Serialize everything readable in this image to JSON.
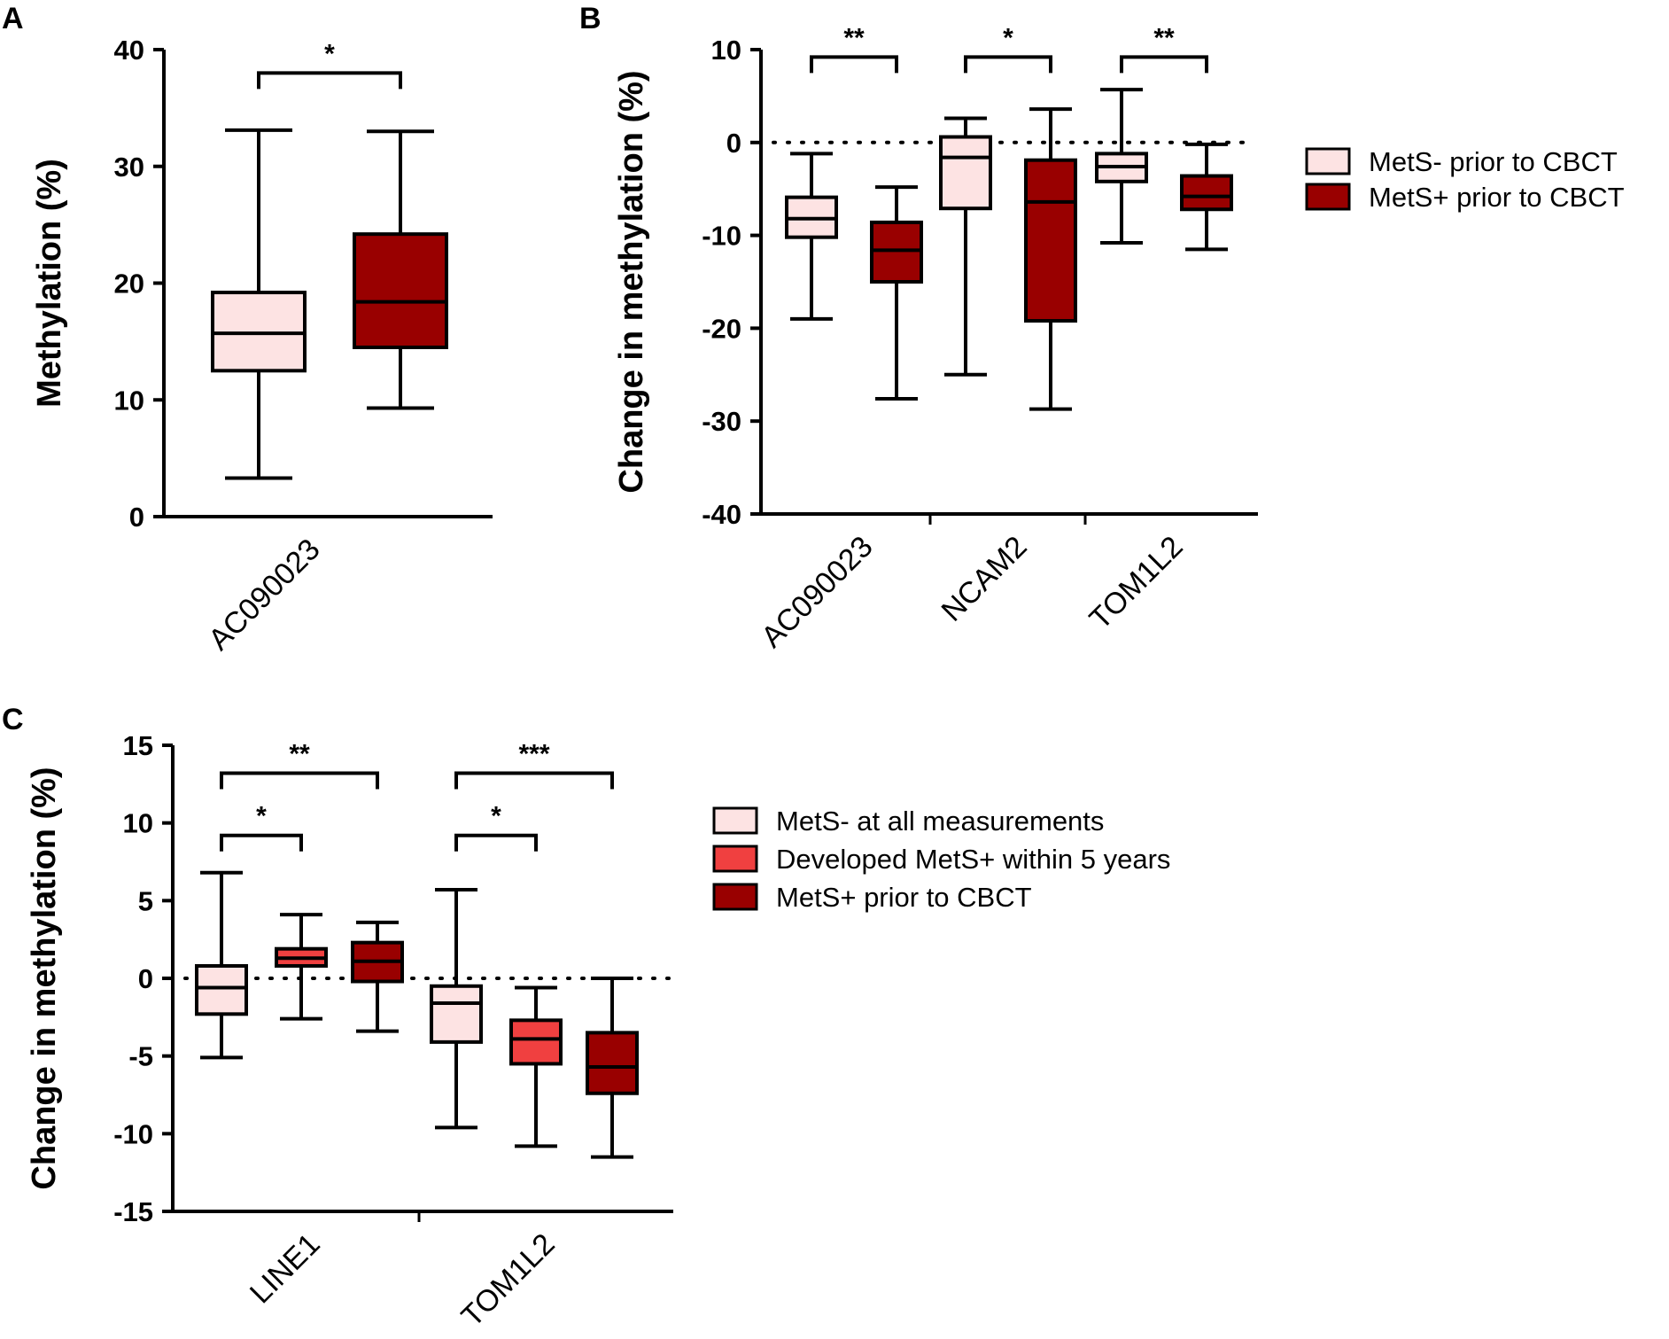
{
  "chart_data": [
    {
      "panel": "A",
      "type": "box",
      "ylabel": "Methylation (%)",
      "ylim": [
        0,
        40
      ],
      "yticks": [
        0,
        10,
        20,
        30,
        40
      ],
      "categories": [
        "AC090023"
      ],
      "series": [
        {
          "name": "MetS- prior to CBCT",
          "color": "#fde3e3",
          "boxes": [
            {
              "min": 3.3,
              "q1": 12.5,
              "median": 15.7,
              "q3": 19.2,
              "max": 33.1
            }
          ]
        },
        {
          "name": "MetS+ prior to CBCT",
          "color": "#990000",
          "boxes": [
            {
              "min": 9.3,
              "q1": 14.5,
              "median": 18.4,
              "q3": 24.2,
              "max": 33.0
            }
          ]
        }
      ],
      "comparisons": [
        {
          "category": 0,
          "from": 0,
          "to": 1,
          "label": "*",
          "y": 38.0
        }
      ]
    },
    {
      "panel": "B",
      "type": "box",
      "ylabel": "Change in methylation (%)",
      "ylim": [
        -40,
        10
      ],
      "yticks": [
        -40,
        -30,
        -20,
        -10,
        0,
        10
      ],
      "reference_line": 0,
      "categories": [
        "AC090023",
        "NCAM2",
        "TOM1L2"
      ],
      "series": [
        {
          "name": "MetS- prior to CBCT",
          "color": "#fde3e3",
          "boxes": [
            {
              "min": -19.0,
              "q1": -10.2,
              "median": -8.2,
              "q3": -5.9,
              "max": -1.2
            },
            {
              "min": -25.0,
              "q1": -7.1,
              "median": -1.6,
              "q3": 0.6,
              "max": 2.6
            },
            {
              "min": -10.8,
              "q1": -4.2,
              "median": -2.6,
              "q3": -1.2,
              "max": 5.7
            }
          ]
        },
        {
          "name": "MetS+ prior to CBCT",
          "color": "#990000",
          "boxes": [
            {
              "min": -27.6,
              "q1": -15.0,
              "median": -11.6,
              "q3": -8.6,
              "max": -4.8
            },
            {
              "min": -28.7,
              "q1": -19.2,
              "median": -6.4,
              "q3": -1.9,
              "max": 3.6
            },
            {
              "min": -11.5,
              "q1": -7.2,
              "median": -5.8,
              "q3": -3.6,
              "max": -0.2
            }
          ]
        }
      ],
      "comparisons": [
        {
          "category": 0,
          "from": 0,
          "to": 1,
          "label": "**",
          "y": 9.2
        },
        {
          "category": 1,
          "from": 0,
          "to": 1,
          "label": "*",
          "y": 9.2
        },
        {
          "category": 2,
          "from": 0,
          "to": 1,
          "label": "**",
          "y": 9.2
        }
      ],
      "legend": [
        "MetS- prior to CBCT",
        "MetS+ prior to CBCT"
      ]
    },
    {
      "panel": "C",
      "type": "box",
      "ylabel": "Change in methylation (%)",
      "ylim": [
        -15,
        15
      ],
      "yticks": [
        -15,
        -10,
        -5,
        0,
        5,
        10,
        15
      ],
      "reference_line": 0,
      "categories": [
        "LINE1",
        "TOM1L2"
      ],
      "series": [
        {
          "name": "MetS- at all measurements",
          "color": "#fde3e3",
          "boxes": [
            {
              "min": -5.1,
              "q1": -2.3,
              "median": -0.6,
              "q3": 0.8,
              "max": 6.8
            },
            {
              "min": -9.6,
              "q1": -4.1,
              "median": -1.6,
              "q3": -0.5,
              "max": 5.7
            }
          ]
        },
        {
          "name": "Developed MetS+ within 5 years",
          "color": "#f04040",
          "boxes": [
            {
              "min": -2.6,
              "q1": 0.8,
              "median": 1.3,
              "q3": 1.9,
              "max": 4.1
            },
            {
              "min": -10.8,
              "q1": -5.5,
              "median": -3.9,
              "q3": -2.7,
              "max": -0.6
            }
          ]
        },
        {
          "name": "MetS+ prior to CBCT",
          "color": "#990000",
          "boxes": [
            {
              "min": -3.4,
              "q1": -0.2,
              "median": 1.1,
              "q3": 2.3,
              "max": 3.6
            },
            {
              "min": -11.5,
              "q1": -7.4,
              "median": -5.7,
              "q3": -3.5,
              "max": 0.0
            }
          ]
        }
      ],
      "comparisons": [
        {
          "category": 0,
          "from": 0,
          "to": 2,
          "label": "**",
          "y": 13.2
        },
        {
          "category": 0,
          "from": 0,
          "to": 1,
          "label": "*",
          "y": 9.2
        },
        {
          "category": 1,
          "from": 0,
          "to": 2,
          "label": "***",
          "y": 13.2
        },
        {
          "category": 1,
          "from": 0,
          "to": 1,
          "label": "*",
          "y": 9.2
        }
      ],
      "legend": [
        "MetS- at all measurements",
        "Developed MetS+ within 5 years",
        "MetS+ prior to CBCT"
      ]
    }
  ]
}
